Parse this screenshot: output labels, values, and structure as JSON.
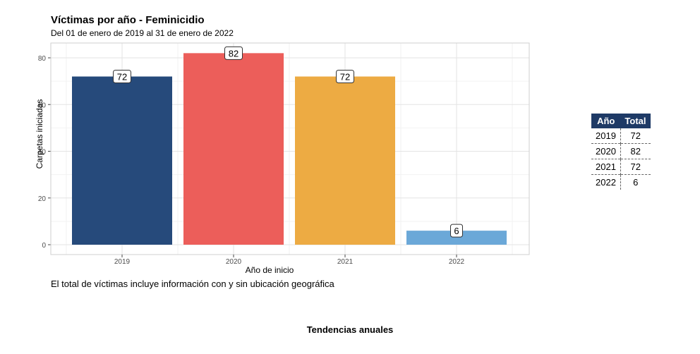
{
  "chart_data": {
    "type": "bar",
    "title": "Víctimas por año - Feminicidio",
    "subtitle": "Del 01 de enero de 2019 al 31 de enero de 2022",
    "xlabel": "Año de inicio",
    "ylabel": "Carpetas iniciadas",
    "categories": [
      "2019",
      "2020",
      "2021",
      "2022"
    ],
    "values": [
      72,
      82,
      72,
      6
    ],
    "colors": [
      "#264a7b",
      "#ec5e5a",
      "#edab43",
      "#6ba8d8"
    ],
    "ylim": [
      0,
      85
    ],
    "yticks": [
      0,
      20,
      40,
      60,
      80
    ],
    "grid": true,
    "legend": "none"
  },
  "caption": "El total de víctimas incluye información con y sin ubicación geográfica",
  "footer": "Tendencias anuales",
  "summary_table": {
    "headers": [
      "Año",
      "Total"
    ],
    "rows": [
      [
        "2019",
        "72"
      ],
      [
        "2020",
        "82"
      ],
      [
        "2021",
        "72"
      ],
      [
        "2022",
        "6"
      ]
    ]
  }
}
